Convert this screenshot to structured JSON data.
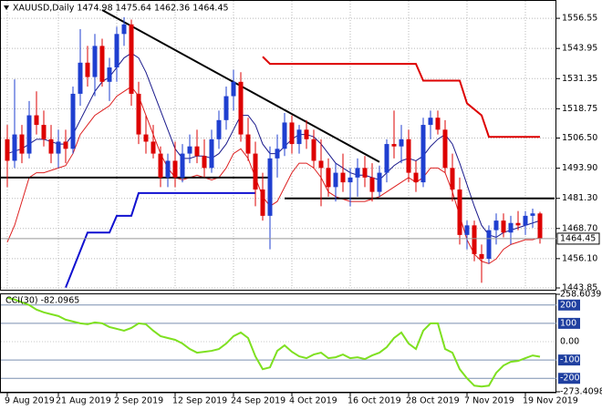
{
  "chart_data": [
    {
      "type": "candlestick",
      "title": "XAUUSD,Daily  1474.98 1475.64 1462.36 1464.45",
      "categories": [
        "9 Aug 2019",
        null,
        null,
        null,
        null,
        null,
        null,
        "21 Aug 2019",
        null,
        null,
        null,
        null,
        null,
        null,
        null,
        "2 Sep 2019",
        null,
        null,
        null,
        null,
        null,
        null,
        null,
        "12 Sep 2019",
        null,
        null,
        null,
        null,
        null,
        null,
        null,
        "24 Sep 2019",
        null,
        null,
        null,
        null,
        null,
        null,
        null,
        "4 Oct 2019",
        null,
        null,
        null,
        null,
        null,
        null,
        null,
        "16 Oct 2019",
        null,
        null,
        null,
        null,
        null,
        null,
        null,
        "28 Oct 2019",
        null,
        null,
        null,
        null,
        null,
        null,
        null,
        "7 Nov 2019",
        null,
        null,
        null,
        null,
        null,
        null,
        null,
        "19 Nov 2019",
        null,
        null
      ],
      "open": [
        1506,
        1497,
        1508,
        1500,
        1516,
        1512,
        1506,
        1500,
        1505,
        1502,
        1525,
        1538,
        1532,
        1545,
        1530,
        1536,
        1550,
        1554,
        1525,
        1508,
        1505,
        1500,
        1490,
        1497,
        1490,
        1500,
        1503,
        1499,
        1494,
        1506,
        1514,
        1524,
        1530,
        1508,
        1500,
        1485,
        1474,
        1498,
        1502,
        1513,
        1504,
        1510,
        1506,
        1497,
        1494,
        1486,
        1492,
        1488,
        1490,
        1494,
        1490,
        1484,
        1492,
        1504,
        1503,
        1506,
        1492,
        1488,
        1512,
        1515,
        1510,
        1494,
        1485,
        1466,
        1470,
        1458,
        1456,
        1468,
        1472,
        1467,
        1471,
        1470,
        1474,
        1474.98
      ],
      "high": [
        1512,
        1531,
        1512,
        1522,
        1526,
        1518,
        1512,
        1510,
        1510,
        1528,
        1552,
        1545,
        1550,
        1548,
        1540,
        1553,
        1557,
        1556,
        1530,
        1516,
        1512,
        1503,
        1500,
        1505,
        1504,
        1508,
        1510,
        1506,
        1510,
        1518,
        1528,
        1535,
        1534,
        1515,
        1505,
        1492,
        1503,
        1508,
        1517,
        1516,
        1512,
        1514,
        1510,
        1506,
        1498,
        1496,
        1500,
        1494,
        1498,
        1499,
        1496,
        1495,
        1506,
        1518,
        1512,
        1510,
        1497,
        1515,
        1518,
        1518,
        1514,
        1500,
        1490,
        1472,
        1472,
        1462,
        1470,
        1475,
        1475,
        1474,
        1476,
        1476,
        1477,
        1475.64
      ],
      "low": [
        1486,
        1494,
        1496,
        1498,
        1508,
        1503,
        1496,
        1494,
        1496,
        1500,
        1520,
        1528,
        1524,
        1528,
        1522,
        1530,
        1545,
        1520,
        1504,
        1500,
        1498,
        1486,
        1486,
        1486,
        1488,
        1496,
        1496,
        1490,
        1492,
        1502,
        1510,
        1518,
        1505,
        1497,
        1478,
        1472,
        1460,
        1490,
        1499,
        1500,
        1500,
        1502,
        1494,
        1478,
        1482,
        1480,
        1484,
        1478,
        1482,
        1486,
        1480,
        1482,
        1488,
        1498,
        1496,
        1488,
        1484,
        1486,
        1506,
        1508,
        1492,
        1480,
        1462,
        1460,
        1455,
        1446,
        1454,
        1462,
        1465,
        1462,
        1468,
        1466,
        1469,
        1462.36
      ],
      "close": [
        1497,
        1508,
        1500,
        1516,
        1512,
        1506,
        1500,
        1505,
        1502,
        1525,
        1538,
        1532,
        1545,
        1530,
        1536,
        1550,
        1554,
        1525,
        1508,
        1505,
        1500,
        1490,
        1497,
        1490,
        1500,
        1503,
        1499,
        1494,
        1506,
        1514,
        1524,
        1530,
        1508,
        1500,
        1485,
        1474,
        1498,
        1502,
        1513,
        1504,
        1510,
        1506,
        1497,
        1494,
        1486,
        1492,
        1488,
        1490,
        1494,
        1490,
        1484,
        1492,
        1504,
        1503,
        1506,
        1492,
        1488,
        1512,
        1515,
        1510,
        1494,
        1485,
        1466,
        1470,
        1458,
        1456,
        1468,
        1472,
        1467,
        1471,
        1470,
        1474,
        1475,
        1464.45
      ],
      "up_color": "#1f3fd0",
      "down_color": "#dd0000",
      "series": [
        {
          "color": "#1a1a8c",
          "values": [
            1500,
            1501,
            1502,
            1504,
            1506,
            1506,
            1505,
            1504,
            1504,
            1508,
            1514,
            1520,
            1526,
            1530,
            1532,
            1536,
            1540,
            1542,
            1540,
            1534,
            1526,
            1518,
            1510,
            1502,
            1498,
            1498,
            1499,
            1499,
            1498,
            1500,
            1504,
            1510,
            1516,
            1516,
            1512,
            1504,
            1500,
            1500,
            1503,
            1506,
            1508,
            1508,
            1507,
            1504,
            1500,
            1496,
            1494,
            1492,
            1491,
            1491,
            1490,
            1489,
            1492,
            1495,
            1497,
            1498,
            1497,
            1499,
            1503,
            1506,
            1508,
            1504,
            1496,
            1487,
            1478,
            1470,
            1466,
            1465,
            1467,
            1468,
            1469,
            1470,
            1471,
            1472
          ]
        },
        {
          "color": "#dd2020",
          "values": [
            1463,
            1470,
            1480,
            1490,
            1492,
            1492,
            1493,
            1494,
            1495,
            1500,
            1508,
            1512,
            1516,
            1518,
            1520,
            1524,
            1526,
            1528,
            1524,
            1516,
            1508,
            1500,
            1494,
            1490,
            1489,
            1490,
            1491,
            1490,
            1489,
            1490,
            1494,
            1500,
            1502,
            1498,
            1490,
            1482,
            1478,
            1480,
            1486,
            1492,
            1496,
            1496,
            1494,
            1490,
            1484,
            1482,
            1481,
            1480,
            1480,
            1480,
            1481,
            1482,
            1484,
            1486,
            1488,
            1490,
            1488,
            1490,
            1494,
            1494,
            1492,
            1484,
            1474,
            1464,
            1458,
            1455,
            1454,
            1456,
            1460,
            1462,
            1463,
            1464,
            1464,
            1465
          ]
        }
      ],
      "lines": [
        {
          "color": "#000000",
          "width": 2,
          "x": [
            13,
            51
          ],
          "y": [
            1560,
            1496.5
          ]
        },
        {
          "color": "#000000",
          "width": 2,
          "x": [
            -1,
            36
          ],
          "y": [
            1490,
            1490
          ]
        },
        {
          "color": "#000000",
          "width": 2,
          "x": [
            38,
            75
          ],
          "y": [
            1481.3,
            1481.3
          ]
        },
        {
          "color": "#1010d0",
          "width": 2,
          "x": [
            8,
            11,
            14,
            15,
            17,
            18,
            34
          ],
          "y": [
            1444,
            1467,
            1467,
            1474,
            1474,
            1483.5,
            1483.5
          ]
        },
        {
          "color": "#dd0000",
          "width": 2,
          "x": [
            35,
            36,
            56,
            57,
            62,
            63,
            65,
            66,
            73
          ],
          "y": [
            1540.5,
            1537.5,
            1537.5,
            1530.5,
            1530.5,
            1521,
            1516,
            1507,
            1507
          ]
        }
      ],
      "ylim": [
        1443.1,
        1564.2
      ],
      "yticks": [
        1556.55,
        1543.95,
        1531.35,
        1518.75,
        {
          "value": 1506.5,
          "label": "1506.50"
        },
        {
          "value": 1493.9,
          "label": "1493.90"
        },
        {
          "value": 1481.3,
          "label": "1481.30"
        },
        {
          "value": 1468.7,
          "label": "1468.70"
        },
        {
          "value": 1456.1,
          "label": "1456.10"
        },
        1443.85
      ],
      "grid": true
    },
    {
      "type": "line",
      "title": "CCI(30) -82.0965",
      "color": "#7ee020",
      "values": [
        240,
        230,
        215,
        200,
        175,
        160,
        150,
        140,
        120,
        110,
        100,
        95,
        105,
        100,
        80,
        70,
        60,
        75,
        100,
        95,
        60,
        30,
        20,
        10,
        -10,
        -40,
        -60,
        -55,
        -50,
        -40,
        -10,
        30,
        50,
        20,
        -80,
        -150,
        -140,
        -50,
        -20,
        -55,
        -80,
        -90,
        -70,
        -60,
        -90,
        -85,
        -70,
        -90,
        -85,
        -95,
        -75,
        -60,
        -30,
        20,
        50,
        -10,
        -40,
        60,
        100,
        100,
        -40,
        -60,
        -150,
        -200,
        -240,
        -245,
        -240,
        -170,
        -130,
        -110,
        -105,
        -90,
        -75,
        -82.0965
      ],
      "ylim": [
        -273.4098,
        258.6039
      ],
      "yticks": [
        258.6039,
        200,
        100,
        {
          "value": 0,
          "label": "0.00"
        },
        -100,
        -200,
        -273.4098
      ]
    }
  ]
}
